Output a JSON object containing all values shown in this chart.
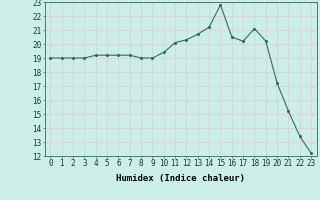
{
  "x": [
    0,
    1,
    2,
    3,
    4,
    5,
    6,
    7,
    8,
    9,
    10,
    11,
    12,
    13,
    14,
    15,
    16,
    17,
    18,
    19,
    20,
    21,
    22,
    23
  ],
  "y": [
    19.0,
    19.0,
    19.0,
    19.0,
    19.2,
    19.2,
    19.2,
    19.2,
    19.0,
    19.0,
    19.4,
    20.1,
    20.3,
    20.7,
    21.2,
    22.8,
    20.5,
    20.2,
    21.1,
    20.2,
    17.2,
    15.2,
    13.4,
    12.2
  ],
  "xlabel": "Humidex (Indice chaleur)",
  "xlim": [
    -0.5,
    23.5
  ],
  "ylim": [
    12,
    23
  ],
  "yticks": [
    12,
    13,
    14,
    15,
    16,
    17,
    18,
    19,
    20,
    21,
    22,
    23
  ],
  "xticks": [
    0,
    1,
    2,
    3,
    4,
    5,
    6,
    7,
    8,
    9,
    10,
    11,
    12,
    13,
    14,
    15,
    16,
    17,
    18,
    19,
    20,
    21,
    22,
    23
  ],
  "bg_color": "#cceee8",
  "grid_color": "#e8c8c8",
  "line_color": "#2d6e60",
  "marker_color": "#2d6e60",
  "label_fontsize": 6.5,
  "tick_fontsize": 5.5
}
